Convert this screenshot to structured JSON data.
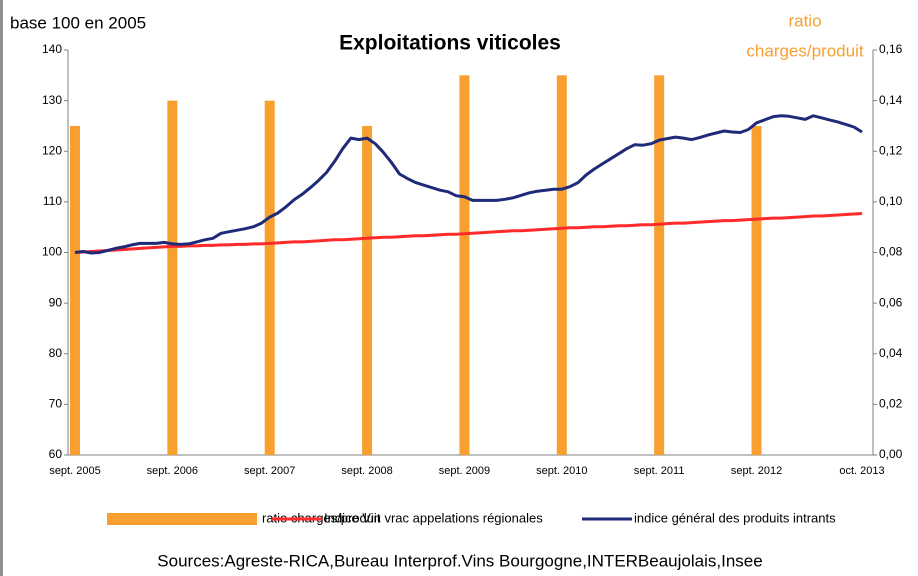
{
  "chart_data": {
    "type": "combo",
    "title": "Exploitations viticoles",
    "ylabel": "base 100 en 2005",
    "y2label": [
      "ratio",
      "charges/produit"
    ],
    "source": "Sources:Agreste-RICA,Bureau Interprof.Vins Bourgogne,INTERBeaujolais,Insee",
    "categories": [
      "sept. 2005",
      null,
      null,
      null,
      null,
      null,
      null,
      null,
      null,
      null,
      null,
      null,
      "sept. 2006",
      null,
      null,
      null,
      null,
      null,
      null,
      null,
      null,
      null,
      null,
      null,
      "sept. 2007",
      null,
      null,
      null,
      null,
      null,
      null,
      null,
      null,
      null,
      null,
      null,
      "sept. 2008",
      null,
      null,
      null,
      null,
      null,
      null,
      null,
      null,
      null,
      null,
      null,
      "sept. 2009",
      null,
      null,
      null,
      null,
      null,
      null,
      null,
      null,
      null,
      null,
      null,
      "sept. 2010",
      null,
      null,
      null,
      null,
      null,
      null,
      null,
      null,
      null,
      null,
      null,
      "sept. 2011",
      null,
      null,
      null,
      null,
      null,
      null,
      null,
      null,
      null,
      null,
      null,
      "sept. 2012",
      null,
      null,
      null,
      null,
      null,
      null,
      null,
      null,
      null,
      null,
      null,
      null,
      "oct. 2013"
    ],
    "series": [
      {
        "name": "ratio charges/produit",
        "type": "bar",
        "axis": "y2",
        "color": "#f7a030",
        "values": [
          0.13,
          null,
          null,
          null,
          null,
          null,
          null,
          null,
          null,
          null,
          null,
          null,
          0.14,
          null,
          null,
          null,
          null,
          null,
          null,
          null,
          null,
          null,
          null,
          null,
          0.14,
          null,
          null,
          null,
          null,
          null,
          null,
          null,
          null,
          null,
          null,
          null,
          0.13,
          null,
          null,
          null,
          null,
          null,
          null,
          null,
          null,
          null,
          null,
          null,
          0.15,
          null,
          null,
          null,
          null,
          null,
          null,
          null,
          null,
          null,
          null,
          null,
          0.15,
          null,
          null,
          null,
          null,
          null,
          null,
          null,
          null,
          null,
          null,
          null,
          0.15,
          null,
          null,
          null,
          null,
          null,
          null,
          null,
          null,
          null,
          null,
          null,
          0.13,
          null,
          null,
          null,
          null,
          null,
          null,
          null,
          null,
          null,
          null,
          null,
          null,
          null
        ]
      },
      {
        "name": "Indice Vin vrac appelations régionales",
        "type": "line",
        "color": "#ff2a2a",
        "values": [
          100.0,
          100.1,
          100.2,
          100.3,
          100.4,
          100.5,
          100.6,
          100.7,
          100.8,
          100.9,
          101.0,
          101.1,
          101.2,
          101.2,
          101.3,
          101.3,
          101.4,
          101.4,
          101.5,
          101.5,
          101.6,
          101.6,
          101.7,
          101.7,
          101.8,
          101.9,
          102.0,
          102.1,
          102.1,
          102.2,
          102.3,
          102.4,
          102.5,
          102.5,
          102.6,
          102.7,
          102.8,
          102.9,
          103.0,
          103.0,
          103.1,
          103.2,
          103.3,
          103.3,
          103.4,
          103.5,
          103.6,
          103.6,
          103.7,
          103.8,
          103.9,
          104.0,
          104.1,
          104.2,
          104.3,
          104.3,
          104.4,
          104.5,
          104.6,
          104.7,
          104.8,
          104.9,
          104.9,
          105.0,
          105.1,
          105.1,
          105.2,
          105.3,
          105.3,
          105.4,
          105.5,
          105.5,
          105.6,
          105.7,
          105.8,
          105.8,
          105.9,
          106.0,
          106.1,
          106.2,
          106.3,
          106.3,
          106.4,
          106.5,
          106.6,
          106.7,
          106.8,
          106.8,
          106.9,
          107.0,
          107.1,
          107.2,
          107.2,
          107.3,
          107.4,
          107.5,
          107.6,
          107.7
        ]
      },
      {
        "name": "indice général des produits intrants",
        "type": "line",
        "color": "#1f2a78",
        "values": [
          100.0,
          100.2,
          99.9,
          100.0,
          100.4,
          100.8,
          101.1,
          101.5,
          101.8,
          101.8,
          101.8,
          102.0,
          101.7,
          101.6,
          101.7,
          102.1,
          102.5,
          102.8,
          103.8,
          104.1,
          104.4,
          104.7,
          105.1,
          105.8,
          107.0,
          107.8,
          109.0,
          110.4,
          111.5,
          112.8,
          114.2,
          115.8,
          118.0,
          120.5,
          122.6,
          122.3,
          122.6,
          121.5,
          119.8,
          117.8,
          115.5,
          114.6,
          113.8,
          113.3,
          112.8,
          112.3,
          112.0,
          111.2,
          111.0,
          110.3,
          110.3,
          110.3,
          110.3,
          110.5,
          110.8,
          111.3,
          111.8,
          112.1,
          112.3,
          112.5,
          112.5,
          113.0,
          113.8,
          115.3,
          116.5,
          117.5,
          118.5,
          119.5,
          120.5,
          121.3,
          121.2,
          121.5,
          122.2,
          122.5,
          122.8,
          122.6,
          122.3,
          122.7,
          123.2,
          123.6,
          124.0,
          123.8,
          123.7,
          124.3,
          125.6,
          126.2,
          126.8,
          127.0,
          126.9,
          126.6,
          126.3,
          127.0,
          126.6,
          126.2,
          125.8,
          125.3,
          124.8,
          123.8
        ]
      }
    ],
    "ylim": [
      60,
      140
    ],
    "yticks": [
      60,
      70,
      80,
      90,
      100,
      110,
      120,
      130,
      140
    ],
    "y2lim": [
      0,
      0.16
    ],
    "y2ticks": [
      {
        "value": 0,
        "label": "0,00"
      },
      {
        "value": 0.02,
        "label": "0,02"
      },
      {
        "value": 0.04,
        "label": "0,04"
      },
      {
        "value": 0.06,
        "label": "0,06"
      },
      {
        "value": 0.08,
        "label": "0,08"
      },
      {
        "value": 0.1,
        "label": "0,10"
      },
      {
        "value": 0.12,
        "label": "0,12"
      },
      {
        "value": 0.14,
        "label": "0,14"
      },
      {
        "value": 0.16,
        "label": "0,16"
      }
    ],
    "grid": false,
    "legend": "bottom"
  }
}
